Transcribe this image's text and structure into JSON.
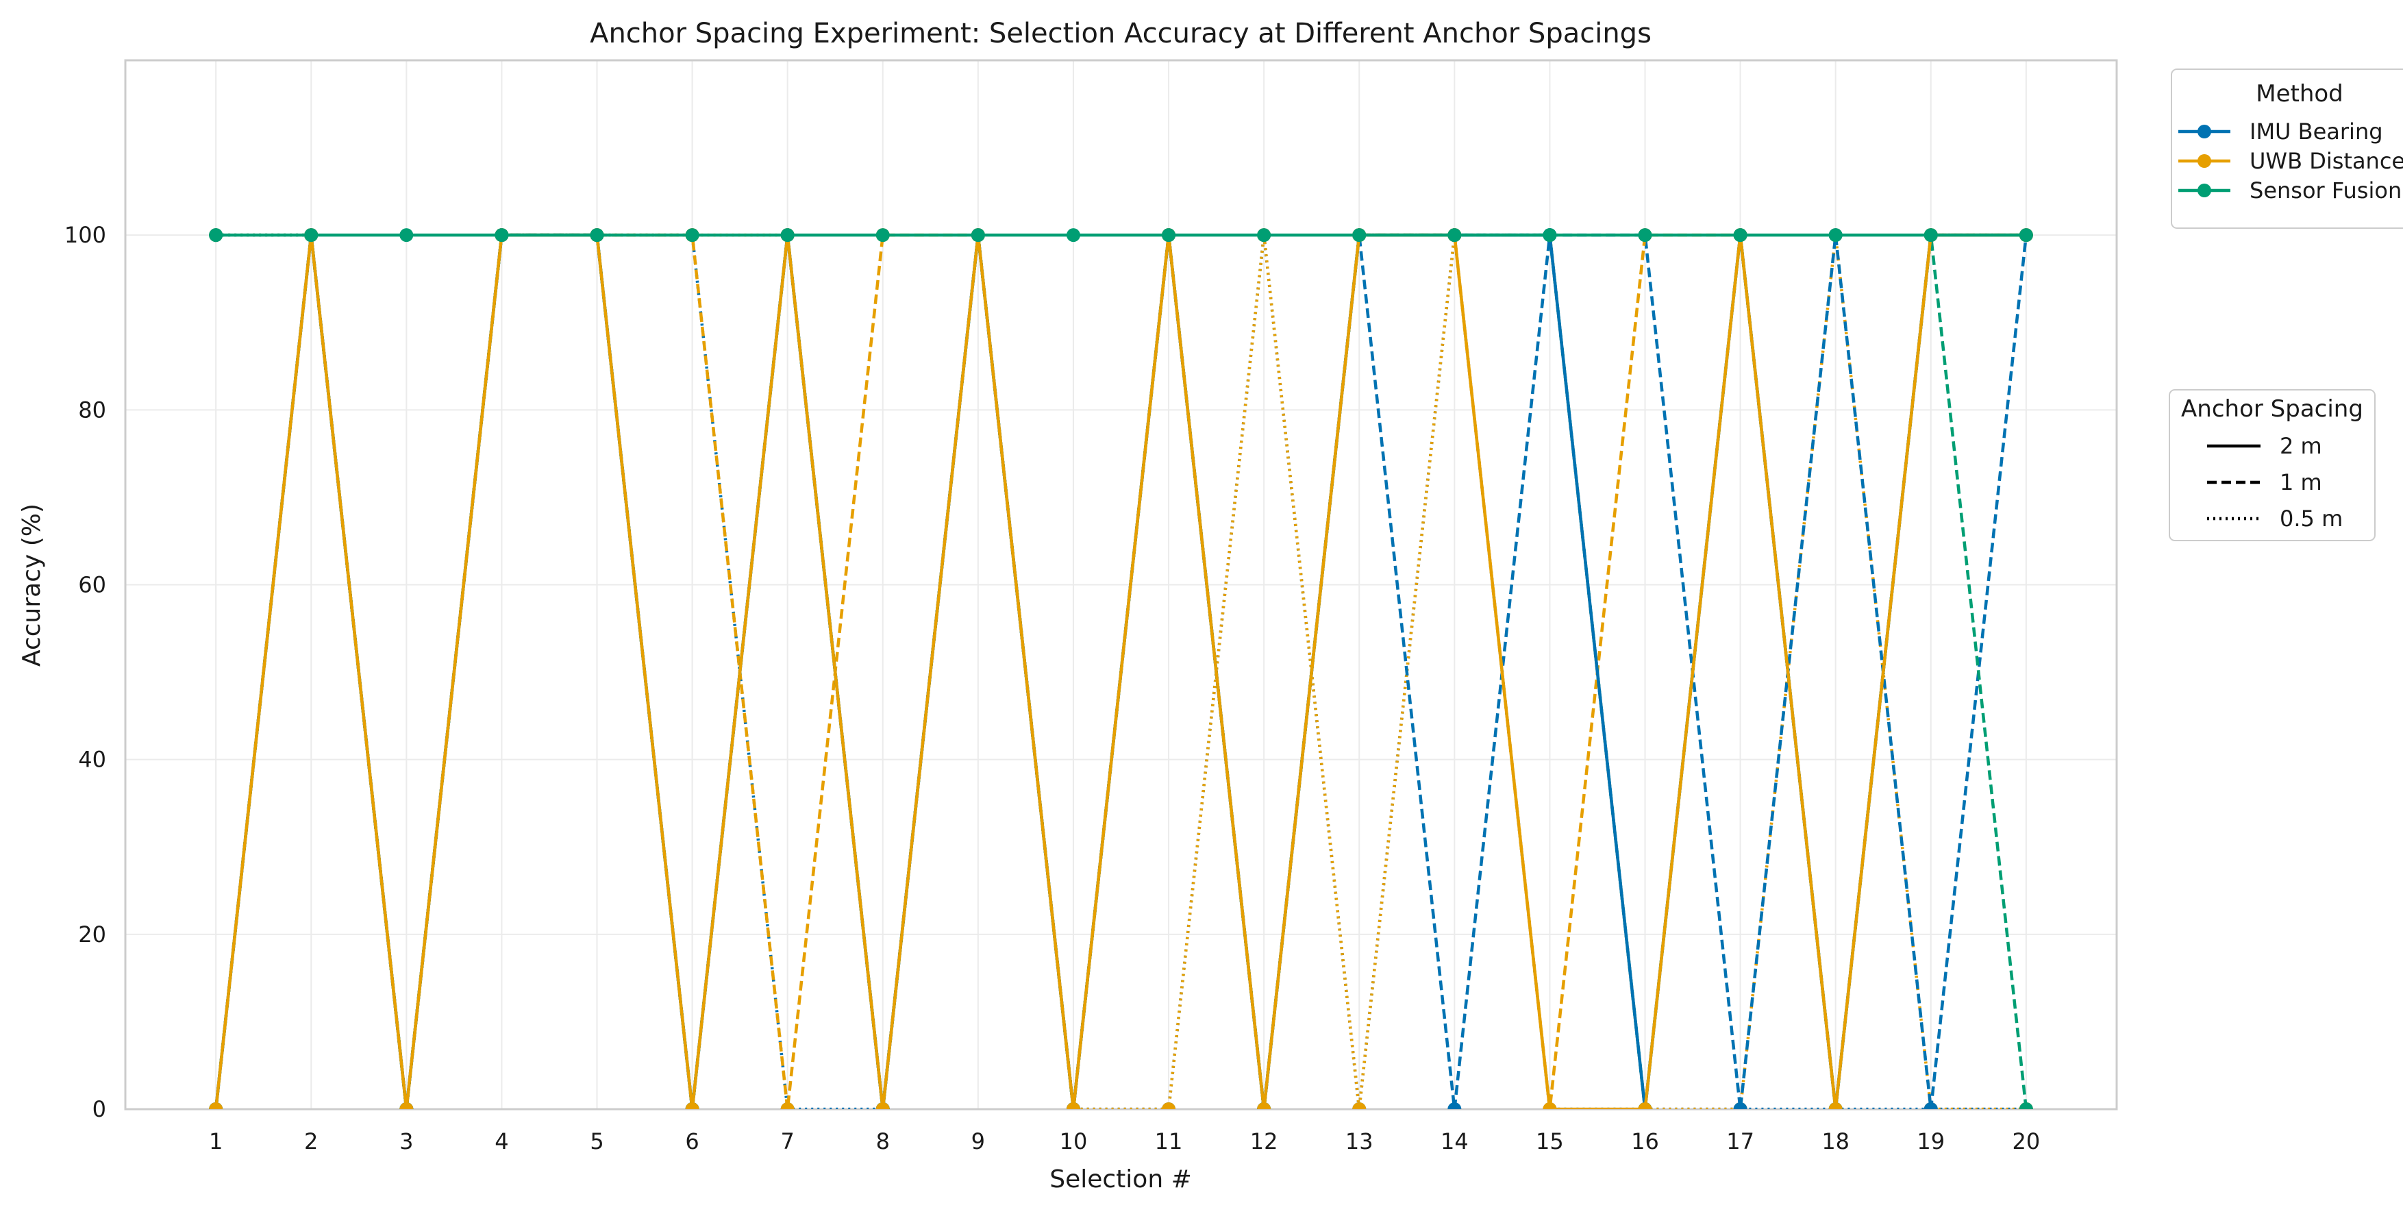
{
  "chart_data": {
    "type": "line",
    "title": "Anchor Spacing Experiment: Selection Accuracy at Different Anchor Spacings",
    "xlabel": "Selection #",
    "ylabel": "Accuracy (%)",
    "xlim": [
      0.05,
      20.95
    ],
    "ylim": [
      0,
      120
    ],
    "x": [
      1,
      2,
      3,
      4,
      5,
      6,
      7,
      8,
      9,
      10,
      11,
      12,
      13,
      14,
      15,
      16,
      17,
      18,
      19,
      20
    ],
    "yticks": [
      0,
      20,
      40,
      60,
      80,
      100
    ],
    "grid": true,
    "methods": [
      {
        "name": "IMU Bearing",
        "color": "#0072B2"
      },
      {
        "name": "UWB Distance",
        "color": "#E69F00"
      },
      {
        "name": "Sensor Fusion",
        "color": "#009E73"
      }
    ],
    "spacings": [
      {
        "name": "2 m",
        "dash": "solid"
      },
      {
        "name": "1 m",
        "dash": "dashed"
      },
      {
        "name": "0.5 m",
        "dash": "dotted"
      }
    ],
    "series": [
      {
        "method": "IMU Bearing",
        "spacing": "2 m",
        "values": [
          0,
          100,
          0,
          100,
          100,
          0,
          100,
          0,
          100,
          0,
          100,
          0,
          100,
          100,
          100,
          0,
          100,
          0,
          100,
          100
        ]
      },
      {
        "method": "IMU Bearing",
        "spacing": "1 m",
        "values": [
          0,
          100,
          0,
          100,
          100,
          0,
          100,
          0,
          100,
          0,
          100,
          0,
          100,
          0,
          100,
          100,
          0,
          100,
          0,
          100
        ]
      },
      {
        "method": "IMU Bearing",
        "spacing": "0.5 m",
        "values": [
          100,
          100,
          0,
          100,
          100,
          100,
          0,
          0,
          100,
          0,
          0,
          100,
          0,
          100,
          0,
          0,
          0,
          0,
          0,
          0
        ]
      },
      {
        "method": "UWB Distance",
        "spacing": "2 m",
        "values": [
          0,
          100,
          0,
          100,
          100,
          0,
          100,
          0,
          100,
          0,
          100,
          0,
          100,
          100,
          0,
          0,
          100,
          0,
          100,
          100
        ]
      },
      {
        "method": "UWB Distance",
        "spacing": "1 m",
        "values": [
          0,
          100,
          0,
          100,
          100,
          100,
          0,
          100,
          100,
          0,
          100,
          0,
          100,
          100,
          0,
          100,
          100,
          0,
          100,
          100
        ]
      },
      {
        "method": "UWB Distance",
        "spacing": "0.5 m",
        "values": [
          100,
          100,
          0,
          100,
          100,
          100,
          100,
          0,
          100,
          0,
          0,
          100,
          0,
          100,
          100,
          0,
          0,
          100,
          0,
          0
        ]
      },
      {
        "method": "Sensor Fusion",
        "spacing": "2 m",
        "values": [
          100,
          100,
          100,
          100,
          100,
          100,
          100,
          100,
          100,
          100,
          100,
          100,
          100,
          100,
          100,
          100,
          100,
          100,
          100,
          100
        ]
      },
      {
        "method": "Sensor Fusion",
        "spacing": "1 m",
        "values": [
          0,
          100,
          0,
          100,
          100,
          0,
          100,
          0,
          100,
          0,
          100,
          0,
          100,
          100,
          100,
          0,
          100,
          0,
          100,
          0
        ]
      },
      {
        "method": "Sensor Fusion",
        "spacing": "0.5 m",
        "values": [
          100,
          100,
          0,
          100,
          100,
          0,
          100,
          0,
          100,
          0,
          100,
          0,
          100,
          100,
          100,
          0,
          100,
          0,
          100,
          100
        ]
      }
    ],
    "legends": {
      "method_title": "Method",
      "spacing_title": "Anchor Spacing",
      "placement": "outside-right"
    }
  }
}
